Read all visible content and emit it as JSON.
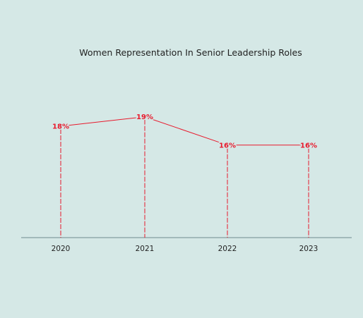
{
  "colors": {
    "background": "#d5e8e6",
    "series": "#e8192c",
    "axis": "#6f8a8f",
    "text": "#1f1f1f"
  },
  "chart_data": {
    "type": "line",
    "title": "Women Representation In Senior Leadership Roles",
    "xlabel": "",
    "ylabel": "",
    "categories": [
      "2020",
      "2021",
      "2022",
      "2023"
    ],
    "series": [
      {
        "values": [
          18,
          19,
          16,
          16
        ],
        "data_labels": [
          "18%",
          "19%",
          "16%",
          "16%"
        ]
      }
    ],
    "ylim": [
      0,
      20
    ],
    "grid": false,
    "drop_lines": true
  }
}
